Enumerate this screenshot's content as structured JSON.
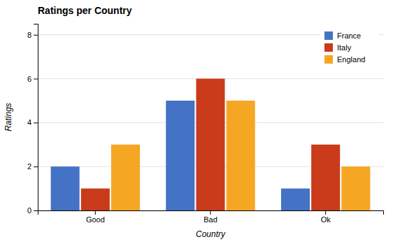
{
  "chart_data": {
    "type": "bar",
    "title": "Ratings per Country",
    "xlabel": "Country",
    "ylabel": "Ratings",
    "categories": [
      "Good",
      "Bad",
      "Ok"
    ],
    "series": [
      {
        "name": "France",
        "color": "#4472C4",
        "values": [
          2,
          5,
          1
        ]
      },
      {
        "name": "Italy",
        "color": "#C93B1B",
        "values": [
          1,
          6,
          3
        ]
      },
      {
        "name": "England",
        "color": "#F5A623",
        "values": [
          3,
          5,
          2
        ]
      }
    ],
    "ylim": [
      0,
      8.5
    ],
    "yticks": [
      0,
      2,
      4,
      6,
      8
    ],
    "grid": true,
    "legend": "upper right"
  }
}
